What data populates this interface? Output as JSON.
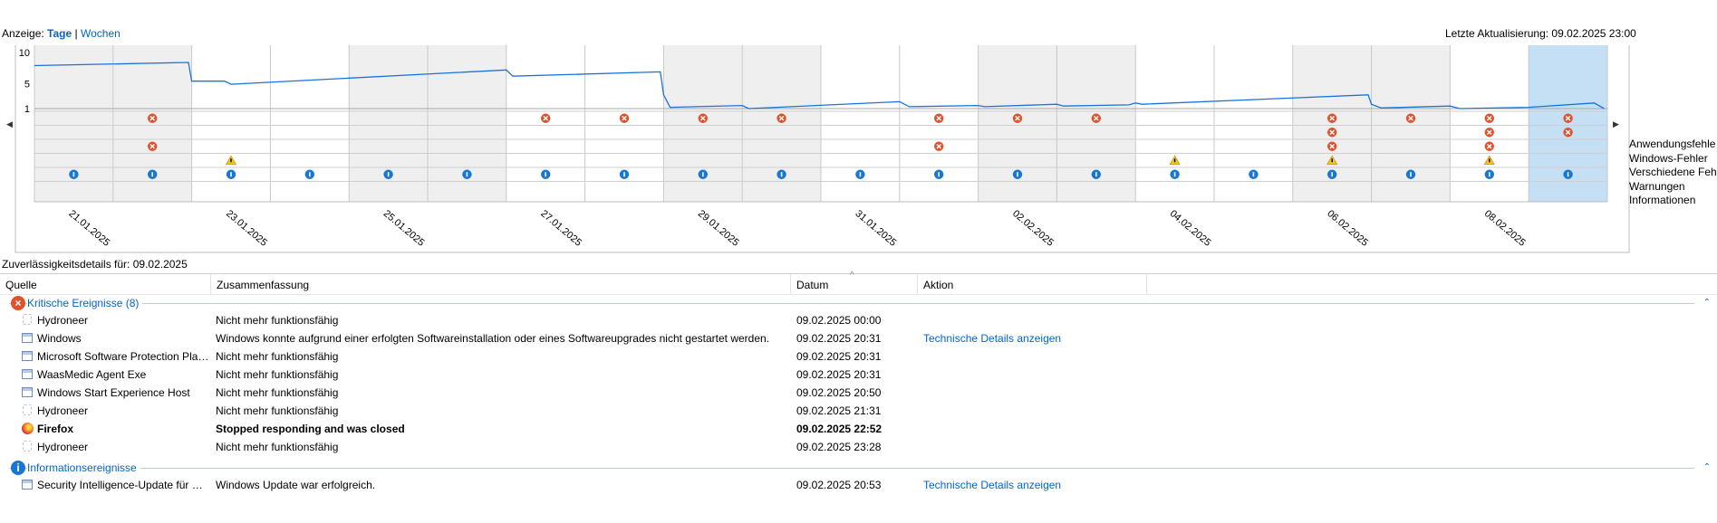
{
  "header": {
    "view_label": "Anzeige:",
    "days_label": "Tage",
    "separator": "|",
    "weeks_label": "Wochen",
    "last_update": "Letzte Aktualisierung: 09.02.2025 23:00"
  },
  "chart": {
    "y_ticks": [
      "10",
      "5",
      "1"
    ],
    "legend": [
      "Anwendungsfehle",
      "Windows-Fehler",
      "Verschiedene Fehle",
      "Warnungen",
      "Informationen"
    ],
    "nav_left": "◀",
    "nav_right": "▶"
  },
  "chart_data": {
    "type": "line",
    "title": "",
    "ylim": [
      1,
      10
    ],
    "days": [
      "21.01.2025",
      "22.01.2025",
      "23.01.2025",
      "24.01.2025",
      "25.01.2025",
      "26.01.2025",
      "27.01.2025",
      "28.01.2025",
      "29.01.2025",
      "30.01.2025",
      "31.01.2025",
      "01.02.2025",
      "02.02.2025",
      "03.02.2025",
      "04.02.2025",
      "05.02.2025",
      "06.02.2025",
      "07.02.2025",
      "08.02.2025",
      "09.02.2025"
    ],
    "date_labels": [
      "21.01.2025",
      "23.01.2025",
      "25.01.2025",
      "27.01.2025",
      "29.01.2025",
      "31.01.2025",
      "02.02.2025",
      "04.02.2025",
      "06.02.2025",
      "08.02.2025"
    ],
    "stability_index": [
      [
        "2025-01-21T00:00",
        7.9
      ],
      [
        "2025-01-22T23:00",
        8.4
      ],
      [
        "2025-01-23T00:00",
        5.4
      ],
      [
        "2025-01-23T10:00",
        5.4
      ],
      [
        "2025-01-23T12:00",
        4.9
      ],
      [
        "2025-01-27T00:00",
        7.2
      ],
      [
        "2025-01-27T02:00",
        6.2
      ],
      [
        "2025-01-28T23:00",
        6.9
      ],
      [
        "2025-01-29T00:00",
        3.2
      ],
      [
        "2025-01-29T02:00",
        1.2
      ],
      [
        "2025-01-30T00:00",
        1.5
      ],
      [
        "2025-01-30T02:00",
        1.0
      ],
      [
        "2025-02-01T00:00",
        2.1
      ],
      [
        "2025-02-01T03:00",
        1.3
      ],
      [
        "2025-02-02T00:00",
        1.5
      ],
      [
        "2025-02-02T02:00",
        1.3
      ],
      [
        "2025-02-03T00:00",
        1.7
      ],
      [
        "2025-02-03T02:00",
        1.4
      ],
      [
        "2025-02-03T22:00",
        1.6
      ],
      [
        "2025-02-04T00:00",
        1.9
      ],
      [
        "2025-02-04T02:00",
        1.7
      ],
      [
        "2025-02-06T23:00",
        3.2
      ],
      [
        "2025-02-07T00:00",
        1.7
      ],
      [
        "2025-02-07T03:00",
        1.1
      ],
      [
        "2025-02-08T00:00",
        1.4
      ],
      [
        "2025-02-08T03:00",
        1.0
      ],
      [
        "2025-02-09T00:00",
        1.2
      ],
      [
        "2025-02-09T20:00",
        1.9
      ],
      [
        "2025-02-09T23:00",
        1.0
      ]
    ],
    "event_rows": [
      "Anwendungsfehle",
      "Windows-Fehler",
      "Verschiedene Fehle",
      "Warnungen",
      "Informationen"
    ],
    "events": {
      "Anwendungsfehle": [
        "22.01.2025",
        "27.01.2025",
        "28.01.2025",
        "29.01.2025",
        "30.01.2025",
        "01.02.2025",
        "02.02.2025",
        "03.02.2025",
        "06.02.2025",
        "07.02.2025",
        "08.02.2025",
        "09.02.2025"
      ],
      "Windows-Fehler": [
        "06.02.2025",
        "08.02.2025",
        "09.02.2025"
      ],
      "Verschiedene Fehle": [
        "22.01.2025",
        "01.02.2025",
        "06.02.2025",
        "08.02.2025"
      ],
      "Warnungen": [
        "23.01.2025",
        "04.02.2025",
        "06.02.2025",
        "08.02.2025"
      ],
      "Informationen": [
        "21.01.2025",
        "22.01.2025",
        "23.01.2025",
        "24.01.2025",
        "25.01.2025",
        "26.01.2025",
        "27.01.2025",
        "28.01.2025",
        "29.01.2025",
        "30.01.2025",
        "31.01.2025",
        "01.02.2025",
        "02.02.2025",
        "03.02.2025",
        "04.02.2025",
        "05.02.2025",
        "06.02.2025",
        "07.02.2025",
        "08.02.2025",
        "09.02.2025"
      ]
    },
    "selected_day": "09.02.2025",
    "colors": {
      "line": "#1a73d9",
      "selected": "#c5dff5",
      "shade": "#efefef",
      "error": "#e0522b",
      "info": "#1877d2",
      "warning": "#f5c518"
    }
  },
  "details": {
    "title": "Zuverlässigkeitsdetails für: 09.02.2025",
    "columns": [
      "Quelle",
      "Zusammenfassung",
      "Datum",
      "Aktion"
    ],
    "groups": [
      {
        "label": "Kritische Ereignisse (8)",
        "icon": "error-icon",
        "rows": [
          {
            "source": "Hydroneer",
            "summary": "Nicht mehr funktionsfähig",
            "date": "09.02.2025 00:00",
            "action": "",
            "icon": "blank-app-icon",
            "bold": false
          },
          {
            "source": "Windows",
            "summary": "Windows konnte aufgrund einer erfolgten Softwareinstallation oder eines Softwareupgrades nicht gestartet werden.",
            "date": "09.02.2025 20:31",
            "action": "Technische Details anzeigen",
            "icon": "window-app-icon",
            "bold": false
          },
          {
            "source": "Microsoft Software Protection Plat...",
            "summary": "Nicht mehr funktionsfähig",
            "date": "09.02.2025 20:31",
            "action": "",
            "icon": "window-app-icon",
            "bold": false
          },
          {
            "source": "WaasMedic Agent Exe",
            "summary": "Nicht mehr funktionsfähig",
            "date": "09.02.2025 20:31",
            "action": "",
            "icon": "window-app-icon",
            "bold": false
          },
          {
            "source": "Windows Start Experience Host",
            "summary": "Nicht mehr funktionsfähig",
            "date": "09.02.2025 20:50",
            "action": "",
            "icon": "window-app-icon",
            "bold": false
          },
          {
            "source": "Hydroneer",
            "summary": "Nicht mehr funktionsfähig",
            "date": "09.02.2025 21:31",
            "action": "",
            "icon": "blank-app-icon",
            "bold": false
          },
          {
            "source": "Firefox",
            "summary": "Stopped responding and was closed",
            "date": "09.02.2025 22:52",
            "action": "",
            "icon": "firefox-icon",
            "bold": true
          },
          {
            "source": "Hydroneer",
            "summary": "Nicht mehr funktionsfähig",
            "date": "09.02.2025 23:28",
            "action": "",
            "icon": "blank-app-icon",
            "bold": false
          }
        ]
      },
      {
        "label": "Informationsereignisse",
        "icon": "info-icon",
        "rows": [
          {
            "source": "Security Intelligence-Update für M...",
            "summary": "Windows Update war erfolgreich.",
            "date": "09.02.2025 20:53",
            "action": "Technische Details anzeigen",
            "icon": "window-app-icon",
            "bold": false
          }
        ]
      }
    ]
  }
}
